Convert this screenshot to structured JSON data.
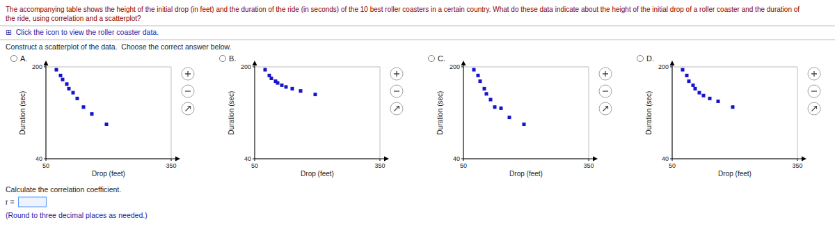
{
  "title": "The accompanying table shows the height of the initial drop (in feet) and the duration of the ride (in seconds) of the 10 best roller coasters in a certain country. What do these data indicate about the height of the initial drop of a roller coaster and the duration of",
  "subtitle": "the ride, using correlation and a scatterplot?",
  "annotations": [
    "⊞  Click the icon to view the roller coaster data.",
    "Construct a scatterplot of the data.  Choose the correct answer below.",
    "Calculate the correlation coefficient.",
    "r = ",
    "(Round to three decimal places as needed.)"
  ],
  "chart_data": [
    {
      "type": "scatter",
      "title": "A.",
      "xlabel": "Drop (feet)",
      "ylabel": "Duration (sec)",
      "x": [
        75,
        85,
        90,
        100,
        105,
        115,
        125,
        140,
        160,
        195
      ],
      "values": [
        195,
        185,
        178,
        170,
        162,
        155,
        145,
        130,
        118,
        100
      ],
      "xlim": [
        50,
        350
      ],
      "ylim": [
        40,
        200
      ],
      "xticks": [
        50,
        350
      ],
      "yticks": [
        40,
        200
      ],
      "color": "#1414CC",
      "marker": "square",
      "grid": true
    },
    {
      "type": "scatter",
      "title": "B.",
      "xlabel": "Drop (feet)",
      "ylabel": "Duration (sec)",
      "x": [
        75,
        85,
        90,
        100,
        105,
        115,
        125,
        140,
        160,
        195
      ],
      "values": [
        195,
        185,
        180,
        175,
        172,
        168,
        165,
        162,
        158,
        152
      ],
      "xlim": [
        50,
        350
      ],
      "ylim": [
        40,
        200
      ],
      "xticks": [
        50,
        350
      ],
      "yticks": [
        40,
        200
      ],
      "color": "#1414CC",
      "marker": "square",
      "grid": true
    },
    {
      "type": "scatter",
      "title": "C.",
      "xlabel": "Drop (feet)",
      "ylabel": "Duration (sec)",
      "x": [
        75,
        85,
        90,
        100,
        105,
        115,
        125,
        140,
        160,
        195
      ],
      "values": [
        195,
        185,
        175,
        162,
        153,
        143,
        130,
        128,
        112,
        100
      ],
      "xlim": [
        50,
        350
      ],
      "ylim": [
        40,
        200
      ],
      "xticks": [
        50,
        350
      ],
      "yticks": [
        40,
        200
      ],
      "color": "#1414CC",
      "marker": "square",
      "grid": true
    },
    {
      "type": "scatter",
      "title": "D.",
      "xlabel": "Drop (feet)",
      "ylabel": "Duration (sec)",
      "x": [
        75,
        85,
        90,
        100,
        105,
        115,
        125,
        140,
        160,
        195
      ],
      "values": [
        195,
        185,
        175,
        168,
        162,
        155,
        150,
        145,
        140,
        130
      ],
      "xlim": [
        50,
        350
      ],
      "ylim": [
        40,
        200
      ],
      "xticks": [
        50,
        350
      ],
      "yticks": [
        40,
        200
      ],
      "color": "#1414CC",
      "marker": "square",
      "grid": true
    }
  ]
}
